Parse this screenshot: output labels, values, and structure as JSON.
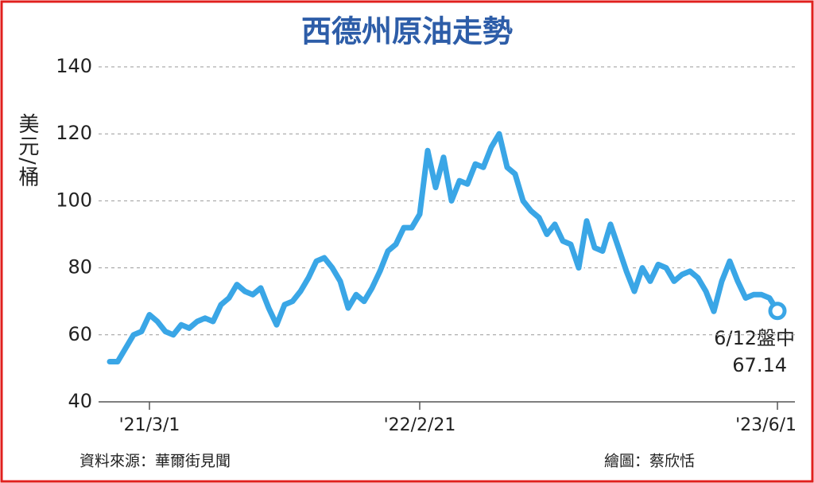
{
  "chart_data": {
    "type": "line",
    "title": "西德州原油走勢",
    "y_label": "美元/桶",
    "source": "資料來源：華爾街見聞",
    "credit": "繪圖：蔡欣恬",
    "annotation": "6/12盤中",
    "categories": [
      null,
      null,
      null,
      null,
      null,
      "'21/3/1",
      null,
      null,
      null,
      null,
      null,
      null,
      null,
      null,
      null,
      null,
      null,
      null,
      null,
      null,
      null,
      null,
      null,
      null,
      null,
      null,
      null,
      null,
      null,
      null,
      null,
      null,
      null,
      null,
      null,
      null,
      null,
      null,
      null,
      "'22/2/21",
      null,
      null,
      null,
      null,
      null,
      null,
      null,
      null,
      null,
      null,
      null,
      null,
      null,
      null,
      null,
      null,
      null,
      null,
      null,
      null,
      null,
      null,
      null,
      null,
      null,
      null,
      null,
      null,
      null,
      null,
      null,
      null,
      null,
      null,
      null,
      null,
      null,
      null,
      null,
      null,
      null,
      null,
      null,
      null,
      "'23/6/1"
    ],
    "series": [
      {
        "name": "西德州原油",
        "color": "#3aa6e6",
        "values": [
          52,
          52,
          56,
          60,
          61,
          66,
          64,
          61,
          60,
          63,
          62,
          64,
          65,
          64,
          69,
          71,
          75,
          73,
          72,
          74,
          68,
          63,
          69,
          70,
          73,
          77,
          82,
          83,
          80,
          76,
          68,
          72,
          70,
          74,
          79,
          85,
          87,
          92,
          92,
          96,
          115,
          104,
          113,
          100,
          106,
          105,
          111,
          110,
          116,
          120,
          110,
          108,
          100,
          97,
          95,
          90,
          93,
          88,
          87,
          80,
          94,
          86,
          85,
          93,
          86,
          79,
          73,
          80,
          76,
          81,
          80,
          76,
          78,
          79,
          77,
          73,
          67,
          76,
          82,
          76,
          71,
          72,
          72,
          71,
          67.14
        ]
      }
    ],
    "ylim": [
      40,
      140
    ],
    "yticks": [
      40,
      60,
      80,
      100,
      120,
      140
    ],
    "grid": true
  }
}
